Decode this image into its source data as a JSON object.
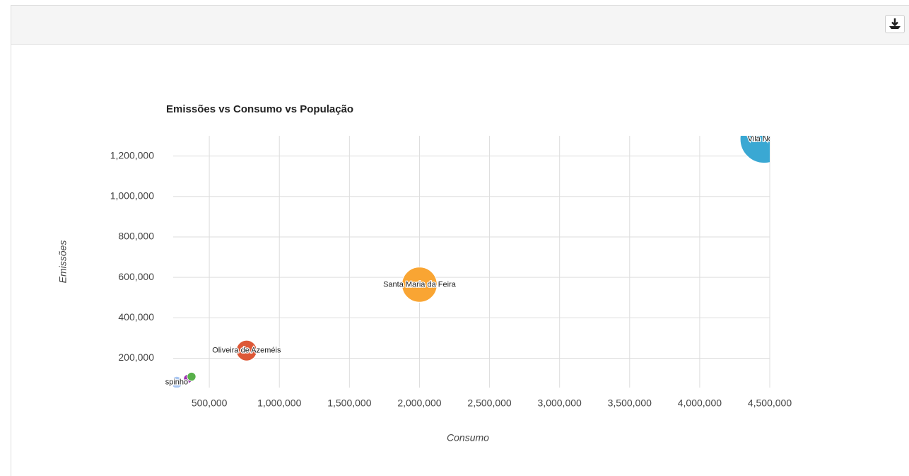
{
  "chart_data": {
    "type": "bubble",
    "title": "Emissões vs Consumo vs População",
    "xlabel": "Consumo",
    "ylabel": "Emissões",
    "xlim": [
      242000,
      4500000
    ],
    "ylim": [
      55000,
      1300000
    ],
    "xticks": [
      {
        "value": 500000,
        "label": "500,000"
      },
      {
        "value": 1000000,
        "label": "1,000,000"
      },
      {
        "value": 1500000,
        "label": "1,500,000"
      },
      {
        "value": 2000000,
        "label": "2,000,000"
      },
      {
        "value": 2500000,
        "label": "2,500,000"
      },
      {
        "value": 3000000,
        "label": "3,000,000"
      },
      {
        "value": 3500000,
        "label": "3,500,000"
      },
      {
        "value": 4000000,
        "label": "4,000,000"
      },
      {
        "value": 4500000,
        "label": "4,500,000"
      }
    ],
    "yticks": [
      {
        "value": 200000,
        "label": "200,000"
      },
      {
        "value": 400000,
        "label": "400,000"
      },
      {
        "value": 600000,
        "label": "600,000"
      },
      {
        "value": 800000,
        "label": "800,000"
      },
      {
        "value": 1000000,
        "label": "1,000,000"
      },
      {
        "value": 1200000,
        "label": "1,200,000"
      }
    ],
    "grid": true,
    "points": [
      {
        "label": "Vila Nova",
        "color": "#3aa8d3",
        "x": 4460000,
        "y": 1284000,
        "size": 300000
      },
      {
        "label": "Santa Maria da Feira",
        "color": "#f9a533",
        "x": 2000000,
        "y": 564000,
        "size": 160000
      },
      {
        "label": "Oliveira de Azeméis",
        "color": "#dd5837",
        "x": 766000,
        "y": 238000,
        "size": 55000
      },
      {
        "label": "spinho",
        "color": "#a9c6f2",
        "x": 267000,
        "y": 81000,
        "size": 18000
      },
      {
        "color": "#9b2fb0",
        "x": 348000,
        "y": 99000,
        "size": 10000
      },
      {
        "color": "#58b04a",
        "x": 373000,
        "y": 109000,
        "size": 10000
      }
    ]
  }
}
